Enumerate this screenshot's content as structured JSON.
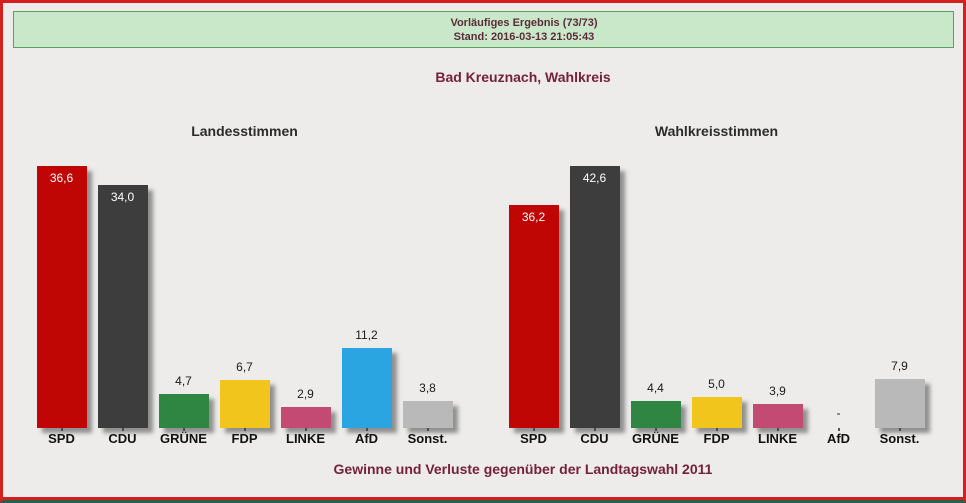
{
  "banner": {
    "line1": "Vorläufiges Ergebnis (73/73)",
    "line2": "Stand: 2016-03-13 21:05:43"
  },
  "page_title": "Bad Kreuznach, Wahlkreis",
  "footer_note": "Gewinne und Verluste gegenüber der Landtagswahl 2011",
  "colors": {
    "page_border": "#d2201f",
    "page_background": "#edecea",
    "banner_background": "#c9e7c9",
    "banner_border": "#5ba15b",
    "heading_text": "#75203c",
    "chart_title_text": "#2b2b2b",
    "value_text_outside": "#1a1a1a",
    "value_text_inside": "#ffffff",
    "bottom_strip": "#2a5d4a",
    "parties": {
      "SPD": "#c00505",
      "CDU": "#3d3d3d",
      "GRÜNE": "#2f8542",
      "FDP": "#f2c51d",
      "LINKE": "#c34a72",
      "AfD": "#2aa5e1",
      "Sonst.": "#b9b9b9"
    }
  },
  "chart_data": [
    {
      "type": "bar",
      "title": "Landesstimmen",
      "categories": [
        "SPD",
        "CDU",
        "GRÜNE",
        "FDP",
        "LINKE",
        "AfD",
        "Sonst."
      ],
      "values": [
        36.6,
        34.0,
        4.7,
        6.7,
        2.9,
        11.2,
        3.8
      ],
      "value_labels": [
        "36,6",
        "34,0",
        "4,7",
        "6,7",
        "2,9",
        "11,2",
        "3,8"
      ],
      "unit": "percent",
      "xlabel": "",
      "ylabel": "",
      "grid": false,
      "legend": false
    },
    {
      "type": "bar",
      "title": "Wahlkreisstimmen",
      "categories": [
        "SPD",
        "CDU",
        "GRÜNE",
        "FDP",
        "LINKE",
        "AfD",
        "Sonst."
      ],
      "values": [
        36.2,
        42.6,
        4.4,
        5.0,
        3.9,
        null,
        7.9
      ],
      "value_labels": [
        "36,2",
        "42,6",
        "4,4",
        "5,0",
        "3,9",
        "-",
        "7,9"
      ],
      "unit": "percent",
      "xlabel": "",
      "ylabel": "",
      "grid": false,
      "legend": false
    }
  ]
}
